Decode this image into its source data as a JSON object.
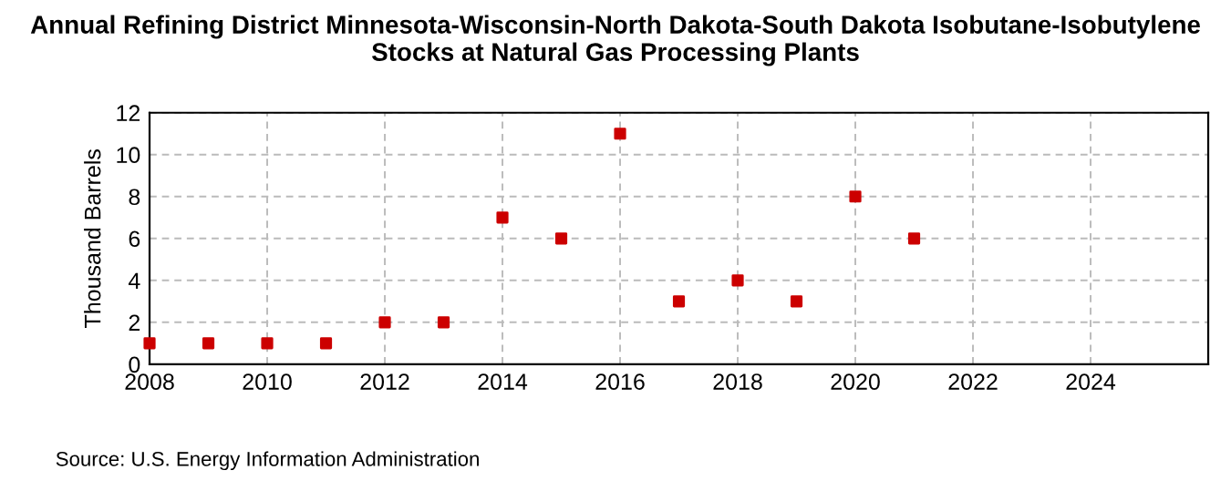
{
  "chart_data": {
    "type": "scatter",
    "title": "Annual Refining District Minnesota-Wisconsin-North Dakota-South Dakota Isobutane-Isobutylene Stocks at Natural Gas Processing Plants",
    "ylabel": "Thousand Barrels",
    "x": [
      2008,
      2009,
      2010,
      2011,
      2012,
      2013,
      2014,
      2015,
      2016,
      2017,
      2018,
      2019,
      2020,
      2021
    ],
    "series": [
      {
        "color": "#cc0000",
        "values": [
          1,
          1,
          1,
          1,
          2,
          2,
          7,
          6,
          11,
          3,
          4,
          3,
          8,
          6
        ]
      }
    ],
    "xlim": [
      2008,
      2026
    ],
    "xticks": [
      2008,
      2010,
      2012,
      2014,
      2016,
      2018,
      2020,
      2022,
      2024
    ],
    "ylim": [
      0,
      12
    ],
    "yticks": [
      0,
      2,
      4,
      6,
      8,
      10,
      12
    ],
    "grid": true,
    "marker": "square",
    "annotations": [
      "Source: U.S. Energy Information Administration"
    ]
  }
}
